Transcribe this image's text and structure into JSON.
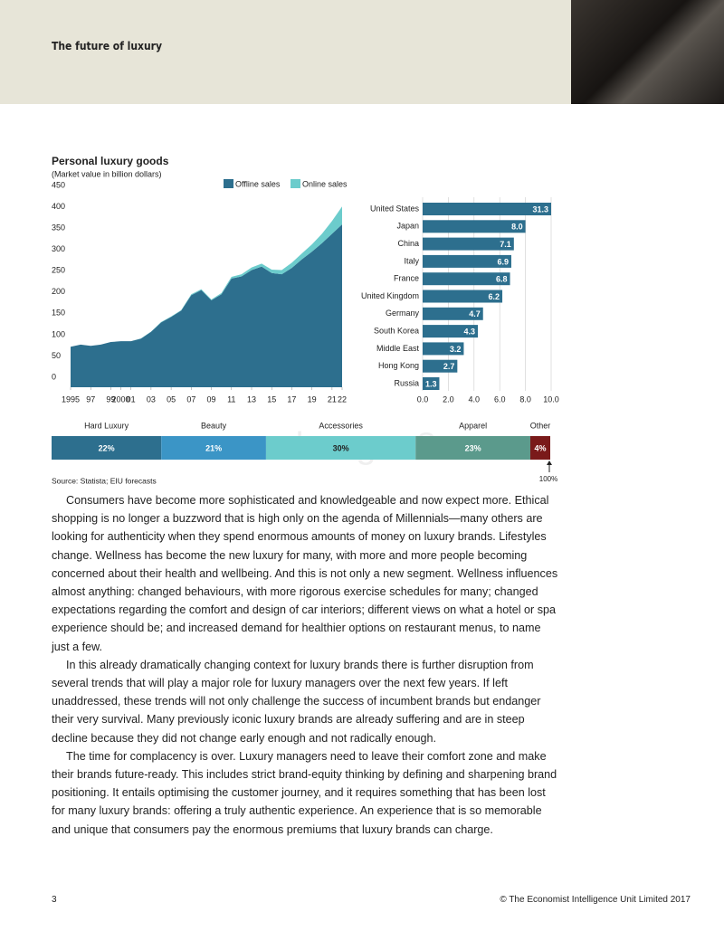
{
  "header": {
    "title": "The future of luxury"
  },
  "chart_data": [
    {
      "type": "area",
      "title": "Personal luxury goods",
      "subtitle": "(Market value in billion dollars)",
      "x": [
        1995,
        1996,
        1997,
        1998,
        1999,
        2000,
        2001,
        2002,
        2003,
        2004,
        2005,
        2006,
        2007,
        2008,
        2009,
        2010,
        2011,
        2012,
        2013,
        2014,
        2015,
        2016,
        2017,
        2018,
        2019,
        2020,
        2021,
        2022
      ],
      "series": [
        {
          "name": "Offline sales",
          "color": "#2d6f8e",
          "values": [
            95,
            100,
            97,
            100,
            106,
            108,
            108,
            114,
            130,
            152,
            165,
            180,
            216,
            228,
            204,
            218,
            255,
            260,
            275,
            283,
            268,
            265,
            280,
            300,
            318,
            338,
            360,
            382
          ]
        },
        {
          "name": "Online sales",
          "color": "#6ccccc",
          "values": [
            0,
            0,
            0,
            0,
            0,
            0,
            0,
            0.5,
            0.5,
            1,
            1,
            1,
            2,
            2,
            2,
            3,
            4,
            5,
            6,
            7,
            8,
            10,
            12,
            14,
            17,
            22,
            30,
            42
          ]
        }
      ],
      "xlim": [
        1995,
        2022
      ],
      "xticks": [
        1995,
        {
          "value": 1997,
          "label": "97"
        },
        {
          "value": 1999,
          "label": "99"
        },
        2000,
        {
          "value": 2001,
          "label": "01"
        },
        {
          "value": 2003,
          "label": "03"
        },
        {
          "value": 2005,
          "label": "05"
        },
        {
          "value": 2007,
          "label": "07"
        },
        {
          "value": 2009,
          "label": "09"
        },
        {
          "value": 2011,
          "label": "11"
        },
        {
          "value": 2013,
          "label": "13"
        },
        {
          "value": 2015,
          "label": "15"
        },
        {
          "value": 2017,
          "label": "17"
        },
        {
          "value": 2019,
          "label": "19"
        },
        {
          "value": 2021,
          "label": "21"
        },
        {
          "value": 2022,
          "label": "22"
        }
      ],
      "ylim": [
        0,
        450
      ],
      "yticks": [
        0,
        50,
        100,
        150,
        200,
        250,
        300,
        350,
        400,
        450
      ],
      "stacked": true
    },
    {
      "type": "hbar",
      "categories": [
        "United States",
        "Japan",
        "China",
        "Italy",
        "France",
        "United Kingdom",
        "Germany",
        "South Korea",
        "Middle East",
        "Hong Kong",
        "Russia"
      ],
      "values": [
        31.3,
        8,
        7.1,
        6.9,
        6.8,
        6.2,
        4.7,
        4.3,
        3.2,
        2.7,
        1.3
      ],
      "value_labels": [
        "31.3",
        "8.0",
        "7.1",
        "6.9",
        "6.8",
        "6.2",
        "4.7",
        "4.3",
        "3.2",
        "2.7",
        "1.3"
      ],
      "color": "#2d6f8e",
      "xlim": [
        0,
        10
      ],
      "xticks": [
        {
          "value": 0,
          "label": "0.0"
        },
        {
          "value": 2,
          "label": "2.0"
        },
        {
          "value": 4,
          "label": "4.0"
        },
        {
          "value": 6,
          "label": "6.0"
        },
        {
          "value": 8,
          "label": "8.0"
        },
        {
          "value": 10,
          "label": "10.0"
        }
      ],
      "grid": true
    },
    {
      "type": "stacked100",
      "categories": [
        "Hard Luxury",
        "Beauty",
        "Accessories",
        "Apparel",
        "Other"
      ],
      "values": [
        22,
        21,
        30,
        23,
        4
      ],
      "value_labels": [
        "22%",
        "21%",
        "30%",
        "23%",
        "4%"
      ],
      "colors": [
        "#2d6f8e",
        "#3b95c6",
        "#6ccccc",
        "#5b9a8c",
        "#7a1a1a"
      ],
      "total_label": "100%",
      "source": "Source: Statista; EIU forecasts"
    }
  ],
  "watermark": "www.baogao8.com",
  "paragraphs": [
    "Consumers have become more sophisticated and knowledgeable and now expect more. Ethical shopping is no longer a buzzword that is high only on the agenda of Millennials—many others are looking for authenticity when they spend enormous amounts of money on luxury brands. Lifestyles change. Wellness has become the new luxury for many, with more and more people becoming concerned about their health and wellbeing. And this is not only a new segment. Wellness influences almost anything: changed behaviours, with more rigorous exercise schedules for many; changed expectations regarding the comfort and design of car interiors; different views on what a hotel or spa experience should be; and increased demand for healthier options on restaurant menus, to name just a few.",
    "In this already dramatically changing context for luxury brands there is further disruption from several trends that will play a major role for luxury managers over the next few years. If left unaddressed, these trends will not only challenge the success of incumbent brands but endanger their very survival. Many previously iconic luxury brands are already suffering and are in steep decline because they did not change early enough and not radically enough.",
    "The time for complacency is over. Luxury managers need to leave their comfort zone and make their brands future-ready. This includes strict brand-equity thinking by defining and sharpening brand positioning. It entails optimising the customer journey, and it requires something that has been lost for many luxury brands: offering a truly authentic experience. An experience that is so memorable and unique that consumers pay the enormous premiums that luxury brands can charge."
  ],
  "footer": {
    "page": "3",
    "copyright": "© The Economist Intelligence Unit Limited 2017"
  }
}
